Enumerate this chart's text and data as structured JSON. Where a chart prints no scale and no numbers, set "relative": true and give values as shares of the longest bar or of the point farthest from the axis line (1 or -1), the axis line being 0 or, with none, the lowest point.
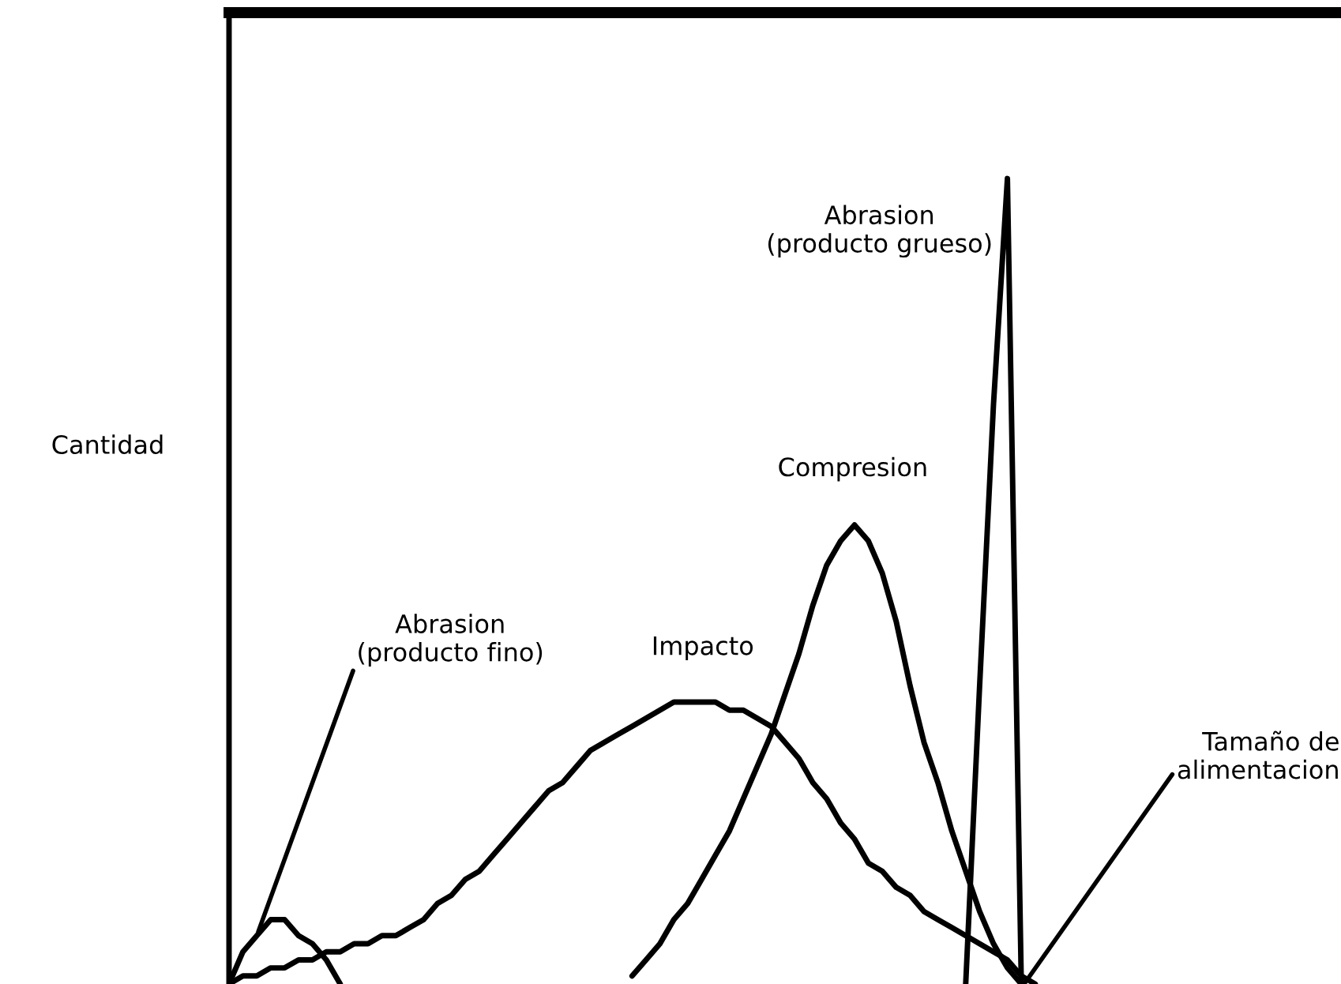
{
  "chart_data": {
    "type": "line",
    "relative": true,
    "ylabel": "Cantidad",
    "categories": [
      null,
      null,
      null,
      null,
      null,
      null,
      null,
      null,
      null,
      null,
      null,
      null,
      null,
      null,
      null,
      null,
      null,
      null,
      null,
      null,
      null,
      null,
      null,
      null,
      null,
      null,
      null,
      null,
      null,
      null,
      null,
      null,
      null,
      null,
      null,
      null,
      null,
      null,
      null,
      null,
      null,
      null,
      null,
      null,
      null,
      null,
      null,
      null,
      null,
      null,
      null,
      null,
      null,
      null,
      null,
      null,
      null,
      null,
      null,
      null,
      null,
      null,
      null,
      null,
      null,
      null,
      null,
      null,
      null,
      null,
      null,
      null,
      null,
      null,
      null,
      null,
      null,
      null,
      null,
      null,
      null
    ],
    "series": [
      {
        "name": "Abrasion\n(producto fino)",
        "color": "#000000",
        "values": [
          0.0,
          0.04,
          0.06,
          0.08,
          0.08,
          0.06,
          0.05,
          0.03,
          0.0,
          null,
          null,
          null,
          null,
          null,
          null,
          null,
          null,
          null,
          null,
          null,
          null,
          null,
          null,
          null,
          null,
          null,
          null,
          null,
          null,
          null,
          null,
          null,
          null,
          null,
          null,
          null,
          null,
          null,
          null,
          null,
          null,
          null,
          null,
          null,
          null,
          null,
          null,
          null,
          null,
          null,
          null,
          null,
          null,
          null,
          null,
          null,
          null,
          null,
          null,
          null,
          null,
          null,
          null,
          null,
          null,
          null,
          null,
          null,
          null,
          null,
          null,
          null,
          null,
          null,
          null,
          null,
          null,
          null,
          null,
          null,
          null
        ]
      },
      {
        "name": "Impacto",
        "color": "#000000",
        "values": [
          0.0,
          0.01,
          0.01,
          0.02,
          0.02,
          0.03,
          0.03,
          0.04,
          0.04,
          0.05,
          0.05,
          0.06,
          0.06,
          0.07,
          0.08,
          0.1,
          0.11,
          0.13,
          0.14,
          0.16,
          0.18,
          0.2,
          0.22,
          0.24,
          0.25,
          0.27,
          0.29,
          0.3,
          0.31,
          0.32,
          0.33,
          0.34,
          0.35,
          0.35,
          0.35,
          0.35,
          0.34,
          0.34,
          0.33,
          0.32,
          0.3,
          0.28,
          0.25,
          0.23,
          0.2,
          0.18,
          0.15,
          0.14,
          0.12,
          0.11,
          0.09,
          0.08,
          0.07,
          0.06,
          0.05,
          0.04,
          0.03,
          0.01,
          0.0,
          null,
          null,
          null,
          null,
          null,
          null,
          null,
          null,
          null,
          null,
          null,
          null,
          null,
          null,
          null,
          null,
          null,
          null,
          null,
          null,
          null,
          null
        ]
      },
      {
        "name": "Compresion",
        "color": "#000000",
        "values": [
          null,
          null,
          null,
          null,
          null,
          null,
          null,
          null,
          null,
          null,
          null,
          null,
          null,
          null,
          null,
          null,
          null,
          null,
          null,
          null,
          null,
          null,
          null,
          null,
          null,
          null,
          null,
          null,
          null,
          0.01,
          0.03,
          0.05,
          0.08,
          0.1,
          0.13,
          0.16,
          0.19,
          0.23,
          0.27,
          0.31,
          0.36,
          0.41,
          0.47,
          0.52,
          0.55,
          0.57,
          0.55,
          0.51,
          0.45,
          0.37,
          0.3,
          0.25,
          0.19,
          0.14,
          0.09,
          0.05,
          0.02,
          0.0,
          null,
          null,
          null,
          null,
          null,
          null,
          null,
          null,
          null,
          null,
          null,
          null,
          null,
          null,
          null,
          null,
          null,
          null,
          null,
          null,
          null,
          null,
          null
        ]
      },
      {
        "name": "Abrasion\n(producto grueso)",
        "color": "#000000",
        "values": [
          null,
          null,
          null,
          null,
          null,
          null,
          null,
          null,
          null,
          null,
          null,
          null,
          null,
          null,
          null,
          null,
          null,
          null,
          null,
          null,
          null,
          null,
          null,
          null,
          null,
          null,
          null,
          null,
          null,
          null,
          null,
          null,
          null,
          null,
          null,
          null,
          null,
          null,
          null,
          null,
          null,
          null,
          null,
          null,
          null,
          null,
          null,
          null,
          null,
          null,
          null,
          null,
          null,
          0.0,
          0.37,
          0.72,
          1.0,
          0.0,
          null,
          null,
          null,
          null,
          null,
          null,
          null,
          null,
          null,
          null,
          null,
          null,
          null,
          null,
          null,
          null,
          null,
          null,
          null,
          null,
          null,
          null,
          null
        ]
      }
    ],
    "annotations": [
      "Tamaño de\nalimentacion"
    ],
    "legend": false,
    "grid": false
  }
}
